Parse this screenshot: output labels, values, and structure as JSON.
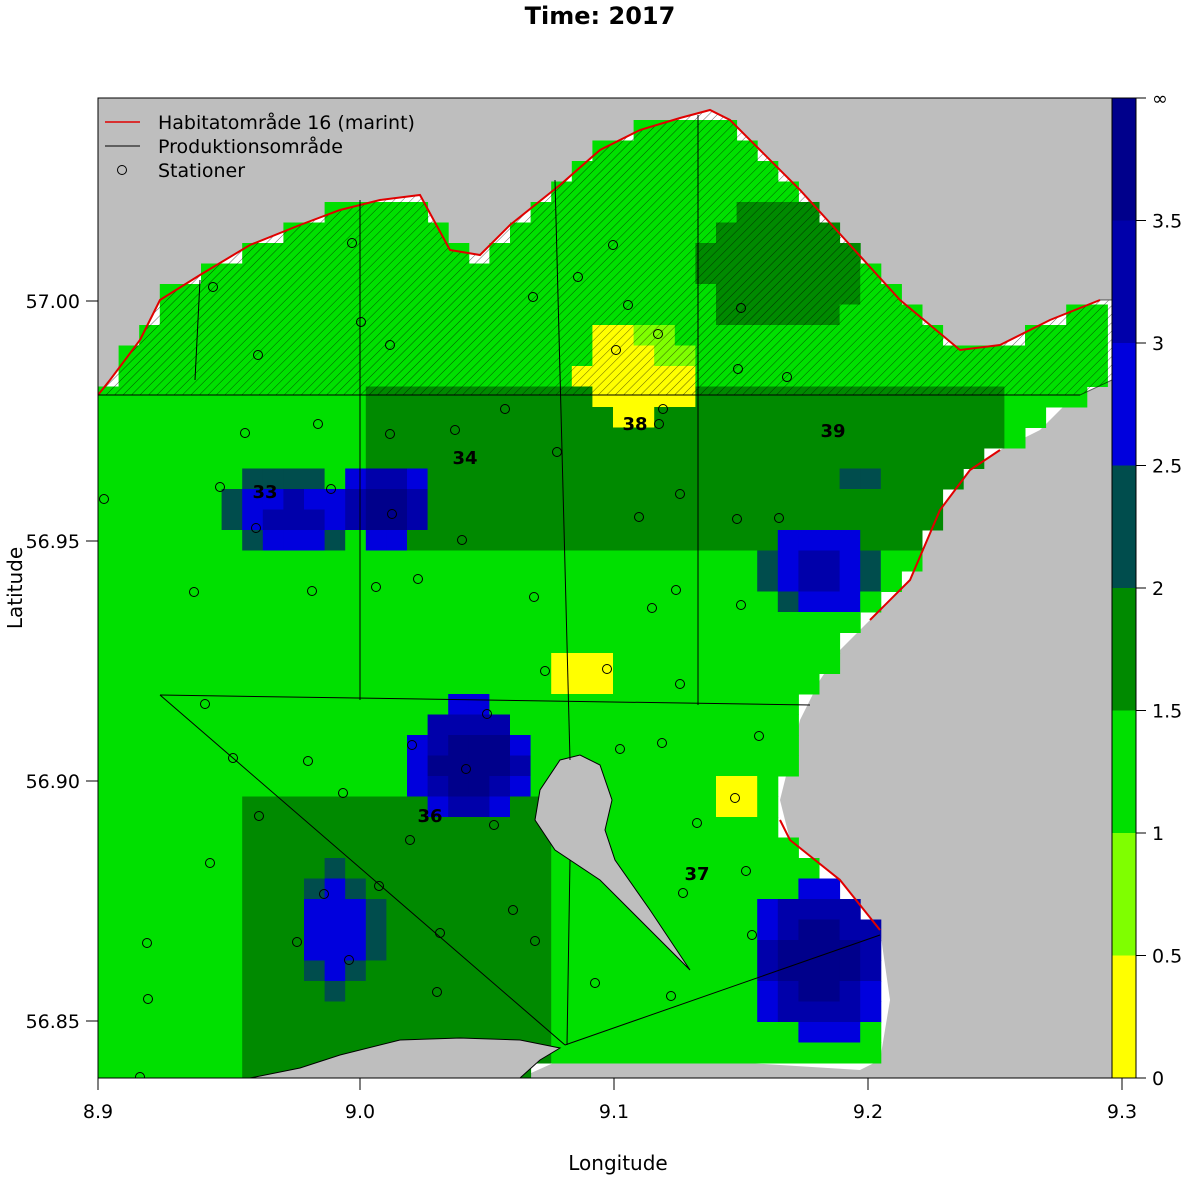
{
  "title": "Time: 2017",
  "x_axis": {
    "label": "Longitude",
    "ticks": [
      "8.9",
      "9.0",
      "9.1",
      "9.2",
      "9.3"
    ]
  },
  "y_axis": {
    "label": "Latitude",
    "ticks": [
      "57.00",
      "56.95",
      "56.90",
      "56.85"
    ]
  },
  "legend": {
    "position": "top-left",
    "items": [
      {
        "label": "Habitatområde 16 (marint)",
        "symbol": "line",
        "color": "#e00000"
      },
      {
        "label": "Produktionsområde",
        "symbol": "line",
        "color": "#000000"
      },
      {
        "label": "Stationer",
        "symbol": "circle",
        "color": "#000000"
      }
    ]
  },
  "colorbar": {
    "labels": [
      "0",
      "0.5",
      "1",
      "1.5",
      "2",
      "2.5",
      "3",
      "3.5",
      "∞"
    ],
    "colors": [
      "#ffff00",
      "#7fff00",
      "#00e000",
      "#008a00",
      "#004d4d",
      "#0000dd",
      "#0000aa",
      "#00008b"
    ]
  },
  "area_labels": [
    "33",
    "34",
    "36",
    "37",
    "38",
    "39"
  ],
  "colors": {
    "land": "#bebebe",
    "habitat_line": "#e00000",
    "production_line": "#000000"
  },
  "chart_data": {
    "type": "heatmap",
    "title": "Time: 2017",
    "xlabel": "Longitude",
    "ylabel": "Latitude",
    "xlim": [
      8.9,
      9.3
    ],
    "ylim": [
      56.84,
      57.04
    ],
    "scale_breaks": [
      0,
      0.5,
      1,
      1.5,
      2,
      2.5,
      3,
      3.5,
      "∞"
    ]
  }
}
